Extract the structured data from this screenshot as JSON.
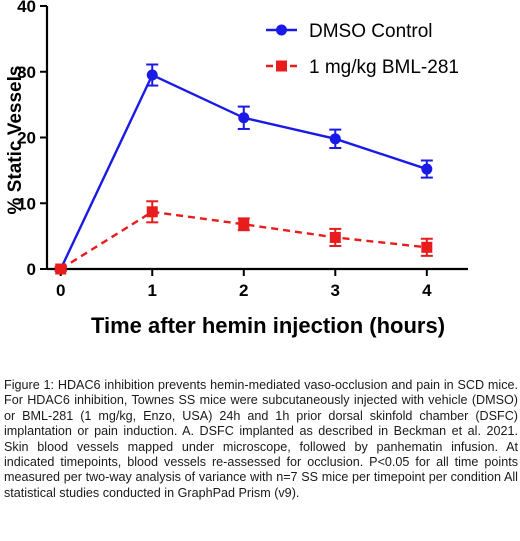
{
  "chart_data": {
    "type": "line",
    "title": "",
    "xlabel": "Time after hemin injection (hours)",
    "ylabel": "% Static Vessels",
    "x": [
      0,
      1,
      2,
      3,
      4
    ],
    "xticks": [
      "0",
      "1",
      "2",
      "3",
      "4"
    ],
    "xlim": [
      -0.15,
      4.45
    ],
    "ylim": [
      0,
      40
    ],
    "yticks": [
      "0",
      "10",
      "20",
      "30",
      "40"
    ],
    "grid": false,
    "legend_position": "top-right",
    "series": [
      {
        "name": "DMSO Control",
        "color": "#1a1ae6",
        "line_style": "solid",
        "marker": "circle",
        "values": [
          0,
          29.5,
          23,
          19.8,
          15.2
        ],
        "error": [
          0.3,
          1.6,
          1.7,
          1.4,
          1.3
        ]
      },
      {
        "name": "1 mg/kg BML-281",
        "color": "#e81c1c",
        "line_style": "dashed",
        "marker": "square",
        "values": [
          0,
          8.7,
          6.8,
          4.8,
          3.3
        ],
        "error": [
          0.2,
          1.6,
          0.9,
          1.3,
          1.3
        ]
      }
    ]
  },
  "caption": "Figure 1: HDAC6 inhibition prevents hemin-mediated vaso-occlusion and pain in SCD mice. For HDAC6 inhibition, Townes SS mice were subcutaneously injected with vehicle (DMSO) or BML-281 (1 mg/kg, Enzo, USA) 24h and 1h prior dorsal skinfold chamber (DSFC) implantation or pain induction. A. DSFC implanted as described in Beckman et al. 2021. Skin blood vessels mapped under microscope, followed by panhematin infusion. At indicated timepoints, blood vessels re-assessed for occlusion. P<0.05 for all time points measured per two-way analysis of variance with n=7 SS mice per timepoint per condition All statistical studies conducted in GraphPad Prism (v9)."
}
